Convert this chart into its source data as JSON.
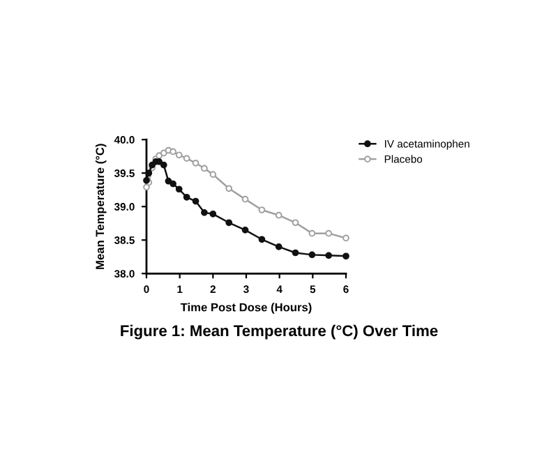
{
  "chart_data": {
    "type": "line",
    "title": "Figure 1: Mean Temperature (°C) Over Time",
    "xlabel": "Time Post Dose (Hours)",
    "ylabel": "Mean Temperature (°C)",
    "xlim": [
      0,
      6
    ],
    "xticks": [
      0,
      1,
      2,
      3,
      4,
      5,
      6
    ],
    "ylim": [
      38.0,
      40.0
    ],
    "yticks": [
      {
        "value": 38.0,
        "label": "38.0"
      },
      {
        "value": 38.5,
        "label": "38.5"
      },
      {
        "value": 39.0,
        "label": "39.0"
      },
      {
        "value": 39.5,
        "label": "39.5"
      },
      {
        "value": 40.0,
        "label": "40.0"
      }
    ],
    "grid": false,
    "legend": "top right",
    "marker": "circle",
    "line_style": "solid",
    "series": [
      {
        "name": "IV acetaminophen",
        "color": "#111111",
        "x": [
          0,
          0.07,
          0.17,
          0.28,
          0.38,
          0.52,
          0.66,
          0.8,
          0.98,
          1.21,
          1.48,
          1.74,
          2.0,
          2.48,
          2.97,
          3.47,
          3.98,
          4.48,
          4.98,
          5.48,
          6
        ],
        "values": [
          39.39,
          39.5,
          39.62,
          39.67,
          39.67,
          39.62,
          39.38,
          39.34,
          39.26,
          39.14,
          39.08,
          38.91,
          38.89,
          38.76,
          38.65,
          38.51,
          38.4,
          38.31,
          38.28,
          38.27,
          38.26
        ]
      },
      {
        "name": "Placebo",
        "color": "#a0a0a0",
        "x": [
          0,
          0.07,
          0.17,
          0.28,
          0.38,
          0.52,
          0.66,
          0.8,
          0.98,
          1.21,
          1.48,
          1.74,
          2.0,
          2.48,
          2.97,
          3.47,
          3.98,
          4.48,
          4.98,
          5.48,
          6
        ],
        "values": [
          39.29,
          39.36,
          39.58,
          39.71,
          39.76,
          39.8,
          39.84,
          39.82,
          39.77,
          39.72,
          39.65,
          39.57,
          39.48,
          39.27,
          39.11,
          38.95,
          38.87,
          38.76,
          38.6,
          38.6,
          38.53
        ]
      }
    ]
  }
}
